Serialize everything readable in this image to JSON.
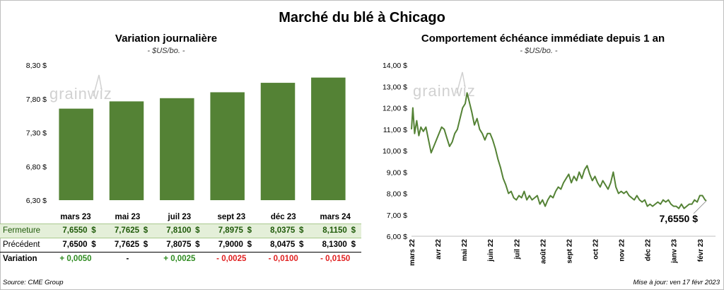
{
  "title": "Marché du blé à Chicago",
  "left_panel": {
    "title": "Variation journalière",
    "unit": "- $US/bo. -"
  },
  "right_panel": {
    "title": "Comportement échéance immédiate depuis 1 an",
    "unit": "- $US/bo. -",
    "last_value_label": "7,6550 $"
  },
  "watermark": "grainwiz",
  "table": {
    "row_labels": {
      "close": "Fermeture",
      "previous": "Précédent",
      "variation": "Variation"
    },
    "currency": "$",
    "columns": [
      {
        "contract": "mars 23",
        "close": "7,6550",
        "previous": "7,6500",
        "variation": "+ 0,0050",
        "dir": "pos"
      },
      {
        "contract": "mai 23",
        "close": "7,7625",
        "previous": "7,7625",
        "variation": "-",
        "dir": "neu"
      },
      {
        "contract": "juil 23",
        "close": "7,8100",
        "previous": "7,8075",
        "variation": "+ 0,0025",
        "dir": "pos"
      },
      {
        "contract": "sept 23",
        "close": "7,8975",
        "previous": "7,9000",
        "variation": "- 0,0025",
        "dir": "neg"
      },
      {
        "contract": "déc 23",
        "close": "8,0375",
        "previous": "8,0475",
        "variation": "- 0,0100",
        "dir": "neg"
      },
      {
        "contract": "mars 24",
        "close": "8,1150",
        "previous": "8,1300",
        "variation": "- 0,0150",
        "dir": "neg"
      }
    ]
  },
  "footer": {
    "source": "Source: CME Group",
    "updated": "Mise à jour: ven 17 févr 2023"
  },
  "colors": {
    "bar": "#548235",
    "line": "#548235",
    "pos": "#2e8b20",
    "neg": "#e02020"
  },
  "chart_data": [
    {
      "type": "bar",
      "title": "Variation journalière",
      "ylabel": "$US/bo.",
      "categories": [
        "mars 23",
        "mai 23",
        "juil 23",
        "sept 23",
        "déc 23",
        "mars 24"
      ],
      "values": [
        7.655,
        7.7625,
        7.81,
        7.8975,
        8.0375,
        8.115
      ],
      "ylim": [
        6.3,
        8.3
      ],
      "yticks": [
        {
          "v": 8.3,
          "label": "8,30 $"
        },
        {
          "v": 7.8,
          "label": "7,80 $"
        },
        {
          "v": 7.3,
          "label": "7,30 $"
        },
        {
          "v": 6.8,
          "label": "6,80 $"
        },
        {
          "v": 6.3,
          "label": "6,30 $"
        }
      ]
    },
    {
      "type": "line",
      "title": "Comportement échéance immédiate depuis 1 an",
      "ylabel": "$US/bo.",
      "ylim": [
        6,
        14
      ],
      "yticks": [
        {
          "v": 14,
          "label": "14,00 $"
        },
        {
          "v": 13,
          "label": "13,00 $"
        },
        {
          "v": 12,
          "label": "12,00 $"
        },
        {
          "v": 11,
          "label": "11,00 $"
        },
        {
          "v": 10,
          "label": "10,00 $"
        },
        {
          "v": 9,
          "label": "9,00 $"
        },
        {
          "v": 8,
          "label": "8,00 $"
        },
        {
          "v": 7,
          "label": "7,00 $"
        },
        {
          "v": 6,
          "label": "6,00 $"
        }
      ],
      "xticks": [
        {
          "t": 0,
          "label": "mars 22"
        },
        {
          "t": 1,
          "label": "avr 22"
        },
        {
          "t": 2,
          "label": "mai 22"
        },
        {
          "t": 3,
          "label": "juin 22"
        },
        {
          "t": 4,
          "label": "juil 22"
        },
        {
          "t": 5,
          "label": "août 22"
        },
        {
          "t": 6,
          "label": "sept 22"
        },
        {
          "t": 7,
          "label": "oct 22"
        },
        {
          "t": 8,
          "label": "nov 22"
        },
        {
          "t": 9,
          "label": "déc 22"
        },
        {
          "t": 10,
          "label": "janv 23"
        },
        {
          "t": 11,
          "label": "févr 23"
        }
      ],
      "x_range": [
        0,
        11.6
      ],
      "points": [
        [
          0.0,
          11.0
        ],
        [
          0.05,
          12.0
        ],
        [
          0.12,
          10.8
        ],
        [
          0.2,
          11.4
        ],
        [
          0.28,
          10.7
        ],
        [
          0.36,
          11.1
        ],
        [
          0.45,
          10.9
        ],
        [
          0.55,
          11.1
        ],
        [
          0.65,
          10.5
        ],
        [
          0.75,
          9.9
        ],
        [
          0.85,
          10.2
        ],
        [
          0.95,
          10.5
        ],
        [
          1.05,
          10.8
        ],
        [
          1.15,
          11.1
        ],
        [
          1.25,
          11.0
        ],
        [
          1.35,
          10.6
        ],
        [
          1.45,
          10.2
        ],
        [
          1.55,
          10.4
        ],
        [
          1.65,
          10.8
        ],
        [
          1.75,
          11.0
        ],
        [
          1.85,
          11.5
        ],
        [
          1.95,
          12.0
        ],
        [
          2.05,
          12.2
        ],
        [
          2.12,
          12.7
        ],
        [
          2.2,
          12.3
        ],
        [
          2.3,
          11.8
        ],
        [
          2.4,
          11.2
        ],
        [
          2.5,
          11.5
        ],
        [
          2.6,
          11.0
        ],
        [
          2.7,
          10.8
        ],
        [
          2.8,
          10.5
        ],
        [
          2.9,
          10.8
        ],
        [
          3.0,
          10.8
        ],
        [
          3.1,
          10.5
        ],
        [
          3.2,
          10.1
        ],
        [
          3.3,
          9.6
        ],
        [
          3.4,
          9.2
        ],
        [
          3.5,
          8.7
        ],
        [
          3.6,
          8.4
        ],
        [
          3.7,
          8.0
        ],
        [
          3.8,
          8.1
        ],
        [
          3.9,
          7.8
        ],
        [
          4.0,
          7.7
        ],
        [
          4.1,
          7.9
        ],
        [
          4.2,
          7.8
        ],
        [
          4.3,
          8.1
        ],
        [
          4.4,
          7.7
        ],
        [
          4.5,
          7.9
        ],
        [
          4.6,
          7.7
        ],
        [
          4.7,
          7.8
        ],
        [
          4.8,
          7.9
        ],
        [
          4.9,
          7.5
        ],
        [
          5.0,
          7.7
        ],
        [
          5.1,
          7.4
        ],
        [
          5.2,
          7.7
        ],
        [
          5.3,
          7.9
        ],
        [
          5.4,
          7.8
        ],
        [
          5.5,
          8.1
        ],
        [
          5.6,
          8.3
        ],
        [
          5.7,
          8.2
        ],
        [
          5.8,
          8.5
        ],
        [
          5.9,
          8.7
        ],
        [
          6.0,
          8.9
        ],
        [
          6.1,
          8.5
        ],
        [
          6.2,
          8.8
        ],
        [
          6.3,
          8.6
        ],
        [
          6.4,
          9.0
        ],
        [
          6.5,
          8.7
        ],
        [
          6.6,
          9.1
        ],
        [
          6.7,
          9.3
        ],
        [
          6.8,
          8.9
        ],
        [
          6.9,
          8.6
        ],
        [
          7.0,
          8.8
        ],
        [
          7.1,
          8.5
        ],
        [
          7.2,
          8.3
        ],
        [
          7.3,
          8.6
        ],
        [
          7.4,
          8.4
        ],
        [
          7.5,
          8.2
        ],
        [
          7.6,
          8.5
        ],
        [
          7.7,
          9.0
        ],
        [
          7.8,
          8.3
        ],
        [
          7.9,
          8.0
        ],
        [
          8.0,
          8.1
        ],
        [
          8.1,
          8.0
        ],
        [
          8.2,
          8.1
        ],
        [
          8.3,
          7.9
        ],
        [
          8.4,
          7.8
        ],
        [
          8.5,
          7.7
        ],
        [
          8.6,
          7.9
        ],
        [
          8.7,
          7.7
        ],
        [
          8.8,
          7.6
        ],
        [
          8.9,
          7.7
        ],
        [
          9.0,
          7.4
        ],
        [
          9.1,
          7.5
        ],
        [
          9.2,
          7.4
        ],
        [
          9.3,
          7.5
        ],
        [
          9.4,
          7.6
        ],
        [
          9.5,
          7.5
        ],
        [
          9.6,
          7.7
        ],
        [
          9.7,
          7.6
        ],
        [
          9.8,
          7.7
        ],
        [
          9.9,
          7.5
        ],
        [
          10.0,
          7.4
        ],
        [
          10.1,
          7.4
        ],
        [
          10.2,
          7.3
        ],
        [
          10.3,
          7.5
        ],
        [
          10.4,
          7.3
        ],
        [
          10.5,
          7.4
        ],
        [
          10.6,
          7.5
        ],
        [
          10.7,
          7.5
        ],
        [
          10.8,
          7.7
        ],
        [
          10.9,
          7.6
        ],
        [
          11.0,
          7.9
        ],
        [
          11.1,
          7.9
        ],
        [
          11.2,
          7.7
        ],
        [
          11.25,
          7.655
        ]
      ]
    }
  ]
}
